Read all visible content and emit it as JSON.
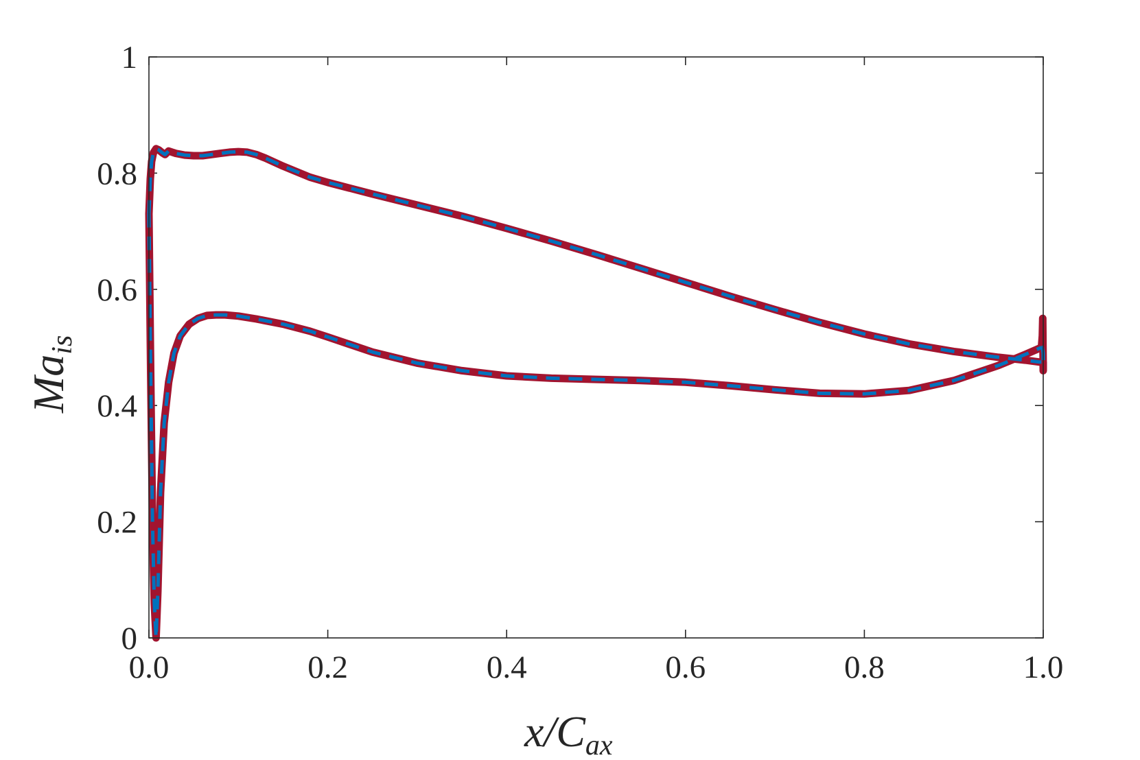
{
  "chart_data": {
    "type": "line",
    "xlabel": "x/C_ax",
    "ylabel": "Ma_is",
    "xlim": [
      0.0,
      1.0
    ],
    "ylim": [
      0,
      1
    ],
    "xticks": [
      0.0,
      0.2,
      0.4,
      0.6,
      0.8,
      1.0
    ],
    "xtick_labels": [
      "0.0",
      "0.2",
      "0.4",
      "0.6",
      "0.8",
      "1.0"
    ],
    "yticks": [
      0,
      0.2,
      0.4,
      0.6,
      0.8,
      1
    ],
    "ytick_labels": [
      "0",
      "0.2",
      "0.4",
      "0.6",
      "0.8",
      "1"
    ],
    "grid": false,
    "colors": {
      "solid": "#A2142F",
      "dashed": "#0072BD"
    },
    "series": [
      {
        "line_style": "solid",
        "color": "#A2142F",
        "suction_side": {
          "x": [
            0.0,
            0.0015,
            0.003,
            0.005,
            0.008,
            0.011,
            0.015,
            0.018,
            0.022,
            0.03,
            0.04,
            0.05,
            0.06,
            0.07,
            0.08,
            0.09,
            0.1,
            0.11,
            0.12,
            0.13,
            0.15,
            0.18,
            0.2,
            0.25,
            0.3,
            0.35,
            0.4,
            0.45,
            0.5,
            0.55,
            0.6,
            0.65,
            0.7,
            0.75,
            0.8,
            0.85,
            0.9,
            0.95,
            0.98,
            0.995,
            0.998
          ],
          "y": [
            0.73,
            0.79,
            0.82,
            0.835,
            0.842,
            0.84,
            0.835,
            0.832,
            0.838,
            0.834,
            0.831,
            0.83,
            0.83,
            0.832,
            0.834,
            0.836,
            0.837,
            0.836,
            0.832,
            0.826,
            0.812,
            0.793,
            0.784,
            0.764,
            0.745,
            0.726,
            0.705,
            0.683,
            0.66,
            0.636,
            0.612,
            0.588,
            0.565,
            0.543,
            0.523,
            0.506,
            0.493,
            0.483,
            0.478,
            0.475,
            0.475
          ]
        },
        "pressure_side": {
          "x": [
            0.0,
            0.002,
            0.004,
            0.006,
            0.008,
            0.01,
            0.013,
            0.017,
            0.022,
            0.028,
            0.035,
            0.045,
            0.055,
            0.065,
            0.075,
            0.085,
            0.1,
            0.12,
            0.15,
            0.18,
            0.2,
            0.25,
            0.3,
            0.35,
            0.4,
            0.45,
            0.5,
            0.55,
            0.6,
            0.65,
            0.7,
            0.75,
            0.8,
            0.85,
            0.9,
            0.95,
            0.98,
            0.995,
            0.998
          ],
          "y": [
            0.73,
            0.45,
            0.2,
            0.06,
            0.0,
            0.08,
            0.25,
            0.37,
            0.44,
            0.49,
            0.52,
            0.54,
            0.55,
            0.555,
            0.556,
            0.556,
            0.554,
            0.549,
            0.54,
            0.528,
            0.518,
            0.492,
            0.473,
            0.46,
            0.451,
            0.447,
            0.445,
            0.443,
            0.44,
            0.434,
            0.427,
            0.421,
            0.42,
            0.426,
            0.443,
            0.469,
            0.488,
            0.498,
            0.5
          ]
        },
        "trailing_edge": {
          "x": [
            0.998,
            0.999,
            0.9995,
            1.0,
            1.0
          ],
          "y": [
            0.5,
            0.52,
            0.55,
            0.46,
            0.475
          ]
        }
      },
      {
        "line_style": "dashed",
        "color": "#0072BD",
        "suction_side": {
          "x": [
            0.0,
            0.0015,
            0.003,
            0.005,
            0.008,
            0.011,
            0.015,
            0.018,
            0.022,
            0.03,
            0.04,
            0.05,
            0.06,
            0.07,
            0.08,
            0.09,
            0.1,
            0.11,
            0.12,
            0.13,
            0.15,
            0.18,
            0.2,
            0.25,
            0.3,
            0.35,
            0.4,
            0.45,
            0.5,
            0.55,
            0.6,
            0.65,
            0.7,
            0.75,
            0.8,
            0.85,
            0.9,
            0.95,
            0.98,
            0.995,
            0.998
          ],
          "y": [
            0.73,
            0.79,
            0.82,
            0.835,
            0.842,
            0.84,
            0.835,
            0.832,
            0.838,
            0.834,
            0.831,
            0.83,
            0.83,
            0.832,
            0.834,
            0.836,
            0.837,
            0.836,
            0.832,
            0.826,
            0.812,
            0.793,
            0.784,
            0.764,
            0.745,
            0.726,
            0.705,
            0.683,
            0.66,
            0.636,
            0.612,
            0.588,
            0.565,
            0.543,
            0.523,
            0.506,
            0.493,
            0.483,
            0.478,
            0.475,
            0.475
          ]
        },
        "pressure_side": {
          "x": [
            0.0,
            0.002,
            0.004,
            0.006,
            0.008,
            0.01,
            0.013,
            0.017,
            0.022,
            0.028,
            0.035,
            0.045,
            0.055,
            0.065,
            0.075,
            0.085,
            0.1,
            0.12,
            0.15,
            0.18,
            0.2,
            0.25,
            0.3,
            0.35,
            0.4,
            0.45,
            0.5,
            0.55,
            0.6,
            0.65,
            0.7,
            0.75,
            0.8,
            0.85,
            0.9,
            0.95,
            0.98,
            0.995,
            0.998
          ],
          "y": [
            0.73,
            0.45,
            0.2,
            0.06,
            0.0,
            0.08,
            0.25,
            0.37,
            0.44,
            0.49,
            0.52,
            0.54,
            0.55,
            0.555,
            0.556,
            0.556,
            0.554,
            0.549,
            0.54,
            0.528,
            0.518,
            0.492,
            0.473,
            0.46,
            0.451,
            0.447,
            0.445,
            0.443,
            0.44,
            0.434,
            0.427,
            0.421,
            0.42,
            0.426,
            0.443,
            0.469,
            0.488,
            0.498,
            0.5
          ]
        },
        "trailing_edge": {
          "x": [
            0.998,
            0.999,
            1.0,
            1.0
          ],
          "y": [
            0.5,
            0.5,
            0.49,
            0.475
          ]
        }
      }
    ]
  }
}
